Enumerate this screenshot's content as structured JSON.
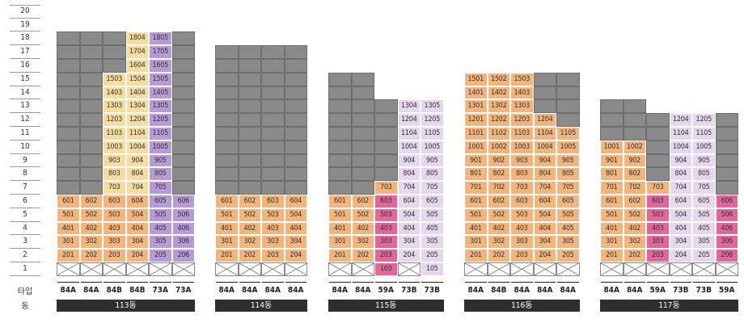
{
  "floor_labels": [
    "20",
    "19",
    "18",
    "17",
    "16",
    "15",
    "14",
    "13",
    "12",
    "11",
    "10",
    "9",
    "8",
    "7",
    "6",
    "5",
    "4",
    "3",
    "2",
    "1"
  ],
  "row_labels": {
    "type": "타입",
    "building": "동"
  },
  "colors": {
    "gray": "#8a8a8a",
    "orange": "#f3b57e",
    "yellow": "#f6dca0",
    "violet": "#b89ad6",
    "lilac": "#e7d7ee",
    "pink": "#e0679a",
    "dark_bar": "#2e2e2e"
  },
  "buildings": [
    {
      "name": "113동",
      "lines": [
        {
          "type": "84A",
          "top": 18,
          "labeled": [
            2,
            3,
            4,
            5,
            6
          ]
        },
        {
          "type": "84A",
          "top": 18,
          "labeled": [
            2,
            3,
            4,
            5,
            6
          ]
        },
        {
          "type": "84B",
          "top": 18,
          "labeled": [
            2,
            3,
            4,
            5,
            6,
            7,
            8,
            9,
            10,
            11,
            12,
            13,
            14,
            15
          ]
        },
        {
          "type": "84B",
          "top": 18,
          "labeled": [
            2,
            3,
            4,
            5,
            6,
            7,
            8,
            9,
            10,
            11,
            12,
            13,
            14,
            15,
            16,
            17,
            18
          ]
        },
        {
          "type": "73A",
          "top": 18,
          "labeled": [
            2,
            3,
            4,
            5,
            6,
            7,
            8,
            9,
            10,
            11,
            12,
            13,
            14,
            15,
            16,
            17,
            18
          ]
        },
        {
          "type": "73A",
          "top": 18,
          "labeled": [
            2,
            3,
            4,
            5,
            6
          ]
        }
      ],
      "colors": {
        "lower": [
          "orange",
          "orange",
          "orange",
          "orange",
          "violet",
          "violet"
        ],
        "upper": [
          "gray",
          "gray",
          "yellow",
          "yellow",
          "violet",
          "gray"
        ]
      }
    },
    {
      "name": "114동",
      "lines": [
        {
          "type": "84A",
          "top": 17,
          "labeled": [
            2,
            3,
            4,
            5,
            6
          ]
        },
        {
          "type": "84A",
          "top": 17,
          "labeled": [
            2,
            3,
            4,
            5,
            6
          ]
        },
        {
          "type": "84A",
          "top": 17,
          "labeled": [
            2,
            3,
            4,
            5,
            6
          ]
        },
        {
          "type": "84A",
          "top": 17,
          "labeled": [
            2,
            3,
            4,
            5,
            6
          ]
        }
      ],
      "colors": {
        "lower": [
          "orange",
          "orange",
          "orange",
          "orange"
        ],
        "upper": [
          "gray",
          "gray",
          "gray",
          "gray"
        ]
      }
    },
    {
      "name": "115동",
      "lines": [
        {
          "type": "84A",
          "top": 15,
          "labeled": [
            2,
            3,
            4,
            5,
            6
          ]
        },
        {
          "type": "84A",
          "top": 15,
          "labeled": [
            2,
            3,
            4,
            5,
            6
          ]
        },
        {
          "type": "59A",
          "top": 13,
          "labeled": [
            1,
            2,
            3,
            4,
            5,
            6,
            7
          ]
        },
        {
          "type": "73B",
          "top": 13,
          "labeled": [
            2,
            3,
            4,
            5,
            6,
            7,
            8,
            9,
            10,
            11,
            12,
            13
          ]
        },
        {
          "type": "73B",
          "top": 13,
          "labeled": [
            1,
            2,
            3,
            4,
            5,
            6,
            7,
            8,
            9,
            10,
            11,
            12,
            13
          ]
        }
      ],
      "colors": {
        "lower": [
          "orange",
          "orange",
          "pink",
          "lilac",
          "lilac"
        ],
        "upper": [
          "gray",
          "gray",
          "gray",
          "lilac",
          "lilac"
        ]
      }
    },
    {
      "name": "116동",
      "lines": [
        {
          "type": "84A",
          "top": 15,
          "labeled": [
            2,
            3,
            4,
            5,
            6,
            7,
            8,
            9,
            10,
            11,
            12,
            13,
            14,
            15
          ]
        },
        {
          "type": "84B",
          "top": 15,
          "labeled": [
            2,
            3,
            4,
            5,
            6,
            7,
            8,
            9,
            10,
            11,
            12,
            13,
            14,
            15
          ]
        },
        {
          "type": "84A",
          "top": 15,
          "labeled": [
            2,
            3,
            4,
            5,
            6,
            7,
            8,
            9,
            10,
            11,
            12,
            13,
            14,
            15
          ]
        },
        {
          "type": "84A",
          "top": 15,
          "labeled": [
            2,
            3,
            4,
            5,
            6,
            7,
            8,
            9,
            10,
            11,
            12
          ]
        },
        {
          "type": "84A",
          "top": 15,
          "labeled": [
            2,
            3,
            4,
            5,
            6,
            7,
            8,
            9,
            10,
            11
          ]
        }
      ],
      "colors": {
        "lower": [
          "orange",
          "orange",
          "orange",
          "orange",
          "orange"
        ],
        "upper": [
          "orange",
          "orange",
          "orange",
          "orange",
          "orange"
        ]
      }
    },
    {
      "name": "117동",
      "lines": [
        {
          "type": "84A",
          "top": 13,
          "labeled": [
            2,
            3,
            4,
            5,
            6,
            7,
            8,
            9,
            10
          ]
        },
        {
          "type": "84A",
          "top": 13,
          "labeled": [
            2,
            3,
            4,
            5,
            6,
            7,
            8,
            9,
            10
          ]
        },
        {
          "type": "59A",
          "top": 12,
          "labeled": [
            2,
            3,
            4,
            5,
            6,
            7
          ]
        },
        {
          "type": "73B",
          "top": 12,
          "labeled": [
            2,
            3,
            4,
            5,
            6,
            7,
            8,
            9,
            10,
            11,
            12
          ]
        },
        {
          "type": "73B",
          "top": 12,
          "labeled": [
            2,
            3,
            4,
            5,
            6,
            7,
            8,
            9,
            10,
            11,
            12
          ]
        },
        {
          "type": "59A",
          "top": 12,
          "labeled": [
            2,
            3,
            4,
            5,
            6
          ]
        }
      ],
      "colors": {
        "lower": [
          "orange",
          "orange",
          "pink",
          "lilac",
          "lilac",
          "pink"
        ],
        "upper": [
          "gray",
          "gray",
          "gray",
          "lilac",
          "lilac",
          "gray"
        ]
      }
    }
  ]
}
